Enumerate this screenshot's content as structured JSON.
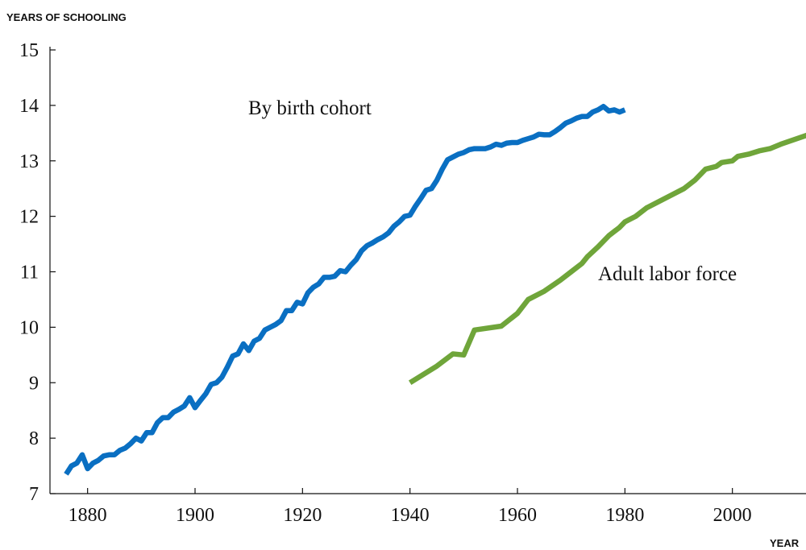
{
  "chart_data": {
    "type": "line",
    "y_label": "YEARS OF SCHOOLING",
    "x_label": "YEAR",
    "annotations": [
      "By birth cohort",
      "Adult labor force"
    ],
    "xlim": [
      1873,
      2014
    ],
    "ylim": [
      7,
      15
    ],
    "xticks": [
      1880,
      1900,
      1920,
      1940,
      1960,
      1980,
      2000
    ],
    "yticks": [
      7,
      8,
      9,
      10,
      11,
      12,
      13,
      14,
      15
    ],
    "series": [
      {
        "name": "By birth cohort",
        "color": "#0a6fc2",
        "x": [
          1876,
          1877,
          1878,
          1879,
          1880,
          1881,
          1882,
          1883,
          1884,
          1885,
          1886,
          1887,
          1888,
          1889,
          1890,
          1891,
          1892,
          1893,
          1894,
          1895,
          1896,
          1897,
          1898,
          1899,
          1900,
          1901,
          1902,
          1903,
          1904,
          1905,
          1906,
          1907,
          1908,
          1909,
          1910,
          1911,
          1912,
          1913,
          1914,
          1915,
          1916,
          1917,
          1918,
          1919,
          1920,
          1921,
          1922,
          1923,
          1924,
          1925,
          1926,
          1927,
          1928,
          1929,
          1930,
          1931,
          1932,
          1933,
          1934,
          1935,
          1936,
          1937,
          1938,
          1939,
          1940,
          1941,
          1942,
          1943,
          1944,
          1945,
          1946,
          1947,
          1948,
          1949,
          1950,
          1951,
          1952,
          1953,
          1954,
          1955,
          1956,
          1957,
          1958,
          1959,
          1960,
          1961,
          1962,
          1963,
          1964,
          1965,
          1966,
          1967,
          1968,
          1969,
          1970,
          1971,
          1972,
          1973,
          1974,
          1975,
          1976,
          1977,
          1978,
          1979,
          1980
        ],
        "values": [
          7.35,
          7.5,
          7.55,
          7.7,
          7.45,
          7.55,
          7.6,
          7.68,
          7.7,
          7.7,
          7.78,
          7.82,
          7.9,
          8.0,
          7.95,
          8.1,
          8.1,
          8.28,
          8.37,
          8.37,
          8.47,
          8.52,
          8.58,
          8.73,
          8.55,
          8.68,
          8.8,
          8.97,
          9.0,
          9.1,
          9.28,
          9.48,
          9.52,
          9.7,
          9.58,
          9.75,
          9.8,
          9.95,
          10.0,
          10.05,
          10.12,
          10.3,
          10.3,
          10.45,
          10.42,
          10.62,
          10.72,
          10.78,
          10.9,
          10.9,
          10.92,
          11.02,
          11.0,
          11.12,
          11.22,
          11.38,
          11.47,
          11.52,
          11.58,
          11.63,
          11.7,
          11.82,
          11.9,
          12.0,
          12.02,
          12.18,
          12.32,
          12.47,
          12.5,
          12.65,
          12.85,
          13.02,
          13.07,
          13.12,
          13.15,
          13.2,
          13.22,
          13.22,
          13.22,
          13.25,
          13.3,
          13.28,
          13.32,
          13.33,
          13.33,
          13.37,
          13.4,
          13.43,
          13.48,
          13.47,
          13.47,
          13.53,
          13.6,
          13.68,
          13.72,
          13.77,
          13.8,
          13.8,
          13.88,
          13.92,
          13.98,
          13.9,
          13.92,
          13.88,
          13.92
        ]
      },
      {
        "name": "Adult labor force",
        "color": "#6fa53a",
        "x": [
          1940,
          1945,
          1948,
          1950,
          1952,
          1957,
          1960,
          1962,
          1965,
          1968,
          1970,
          1972,
          1973,
          1975,
          1977,
          1979,
          1980,
          1982,
          1984,
          1986,
          1988,
          1991,
          1993,
          1995,
          1997,
          1998,
          2000,
          2001,
          2003,
          2005,
          2007,
          2009,
          2012,
          2015
        ],
        "values": [
          9.0,
          9.3,
          9.52,
          9.5,
          9.95,
          10.02,
          10.25,
          10.5,
          10.65,
          10.85,
          11.0,
          11.15,
          11.27,
          11.45,
          11.65,
          11.8,
          11.9,
          12.0,
          12.15,
          12.25,
          12.35,
          12.5,
          12.65,
          12.85,
          12.9,
          12.97,
          13.0,
          13.08,
          13.12,
          13.18,
          13.22,
          13.3,
          13.4,
          13.5
        ]
      }
    ]
  }
}
